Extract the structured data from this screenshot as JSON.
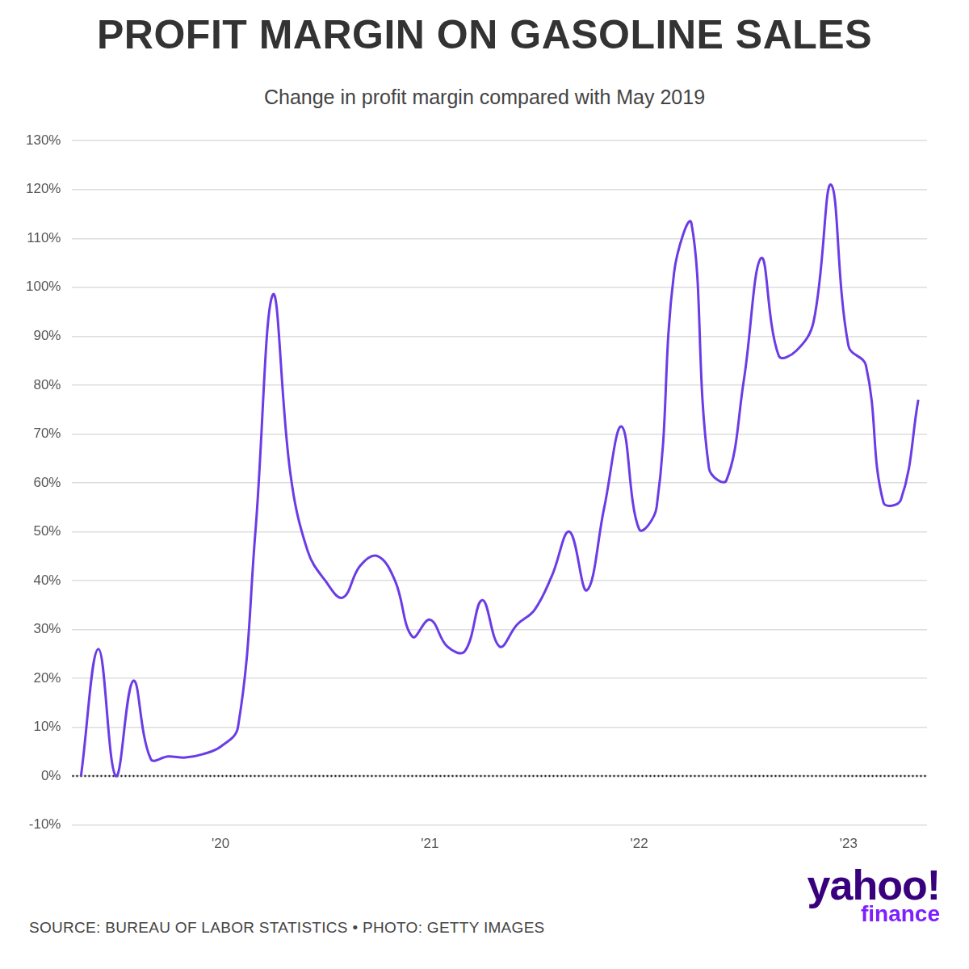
{
  "chart_data": {
    "type": "line",
    "title": "PROFIT MARGIN ON GASOLINE SALES",
    "subtitle": "Change in profit margin compared with May 2019",
    "source": "SOURCE: BUREAU OF LABOR STATISTICS • PHOTO: GETTY IMAGES",
    "logo": [
      "yahoo!",
      "finance"
    ],
    "categories": [
      null,
      null,
      null,
      null,
      null,
      null,
      null,
      null,
      "'20",
      null,
      null,
      null,
      null,
      null,
      null,
      null,
      null,
      null,
      null,
      null,
      "'21",
      null,
      null,
      null,
      null,
      null,
      null,
      null,
      null,
      null,
      null,
      null,
      "'22",
      null,
      null,
      null,
      null,
      null,
      null,
      null,
      null,
      null,
      null,
      null,
      "'23",
      null,
      null,
      null,
      null
    ],
    "values": [
      0,
      26,
      0,
      19.5,
      3.5,
      4,
      3.8,
      4.5,
      6,
      10,
      50,
      98.5,
      62,
      46,
      40,
      36.5,
      43,
      45,
      40,
      28.5,
      32,
      26.5,
      25.5,
      36,
      26.5,
      31,
      34,
      41,
      50,
      38,
      55,
      71.5,
      50.5,
      55,
      103,
      113,
      63,
      60.5,
      81,
      106,
      86,
      87,
      93,
      121,
      88,
      84,
      56,
      56.5,
      77
    ],
    "color": "#6b3ce6",
    "ylim": [
      -10,
      130
    ],
    "yticks": [
      {
        "value": -10,
        "label": "-10%"
      },
      {
        "value": 0,
        "label": "0%"
      },
      {
        "value": 10,
        "label": "10%"
      },
      {
        "value": 20,
        "label": "20%"
      },
      {
        "value": 30,
        "label": "30%"
      },
      {
        "value": 40,
        "label": "40%"
      },
      {
        "value": 50,
        "label": "50%"
      },
      {
        "value": 60,
        "label": "60%"
      },
      {
        "value": 70,
        "label": "70%"
      },
      {
        "value": 80,
        "label": "80%"
      },
      {
        "value": 90,
        "label": "90%"
      },
      {
        "value": 100,
        "label": "100%"
      },
      {
        "value": 110,
        "label": "110%"
      },
      {
        "value": 120,
        "label": "120%"
      },
      {
        "value": 130,
        "label": "130%"
      }
    ],
    "grid": true
  }
}
